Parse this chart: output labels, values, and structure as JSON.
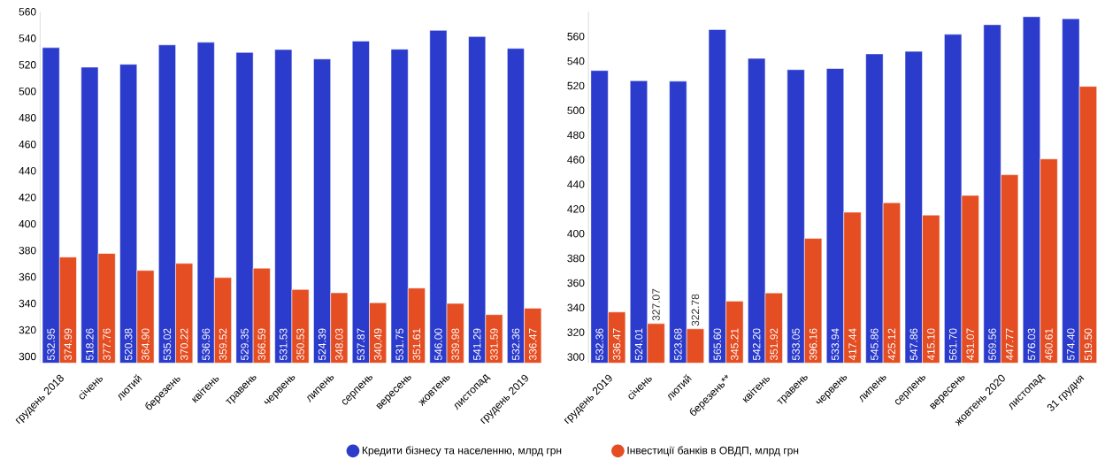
{
  "chart_data": [
    {
      "type": "bar",
      "categories": [
        "грудень 2018",
        "січень",
        "лютий",
        "березень",
        "квітень",
        "травень",
        "червень",
        "липень",
        "серпень",
        "вересень",
        "жовтень",
        "листопад",
        "грудень 2019"
      ],
      "series": [
        {
          "name": "Кредити бізнесу та населенню, млрд грн",
          "color": "#2b3bcc",
          "values": [
            532.95,
            518.26,
            520.38,
            535.02,
            536.96,
            529.35,
            531.53,
            524.39,
            537.87,
            531.75,
            546.0,
            541.29,
            532.36
          ],
          "value_labels": [
            "532.95",
            "518.26",
            "520.38",
            "535.02",
            "536.96",
            "529.35",
            "531.53",
            "524.39",
            "537.87",
            "531.75",
            "546.00",
            "541.29",
            "532.36"
          ]
        },
        {
          "name": "Інвестиції банків в ОВДП, млрд грн",
          "color": "#e44e22",
          "values": [
            374.99,
            377.76,
            364.9,
            370.22,
            359.52,
            366.59,
            350.53,
            348.03,
            340.49,
            351.61,
            339.98,
            331.59,
            336.47
          ],
          "value_labels": [
            "374.99",
            "377.76",
            "364.90",
            "370.22",
            "359.52",
            "366.59",
            "350.53",
            "348.03",
            "340.49",
            "351.61",
            "339.98",
            "331.59",
            "336.47"
          ]
        }
      ],
      "ylim": [
        295,
        560
      ],
      "yticks": [
        300,
        320,
        340,
        360,
        380,
        400,
        420,
        440,
        460,
        480,
        500,
        520,
        540,
        560
      ],
      "legend": "bottom"
    },
    {
      "type": "bar",
      "categories": [
        "грудень 2019",
        "січень",
        "лютий",
        "березень**",
        "квітень",
        "травень",
        "червень",
        "липень",
        "серпень",
        "вересень",
        "жовтень 2020",
        "листопад",
        "31 грудня"
      ],
      "series": [
        {
          "color": "#2b3bcc",
          "values": [
            532.36,
            524.01,
            523.68,
            565.6,
            542.2,
            533.05,
            533.94,
            545.86,
            547.86,
            561.7,
            569.56,
            576.03,
            574.4
          ],
          "value_labels": [
            "532.36",
            "524.01",
            "523.68",
            "565.60",
            "542.20",
            "533.05",
            "533.94",
            "545.86",
            "547.86",
            "561.70",
            "569.56",
            "576.03",
            "574.40"
          ]
        },
        {
          "color": "#e44e22",
          "values": [
            336.47,
            327.07,
            322.78,
            345.21,
            351.92,
            396.16,
            417.44,
            425.12,
            415.1,
            431.07,
            447.77,
            460.61,
            519.5
          ],
          "value_labels": [
            "336.47",
            "327.07",
            "322.78",
            "345.21",
            "351.92",
            "396.16",
            "417.44",
            "425.12",
            "415.10",
            "431.07",
            "447.77",
            "460.61",
            "519.50"
          ]
        }
      ],
      "ylim": [
        295,
        580
      ],
      "yticks": [
        300,
        320,
        340,
        360,
        380,
        400,
        420,
        440,
        460,
        480,
        500,
        520,
        540,
        560
      ]
    }
  ]
}
